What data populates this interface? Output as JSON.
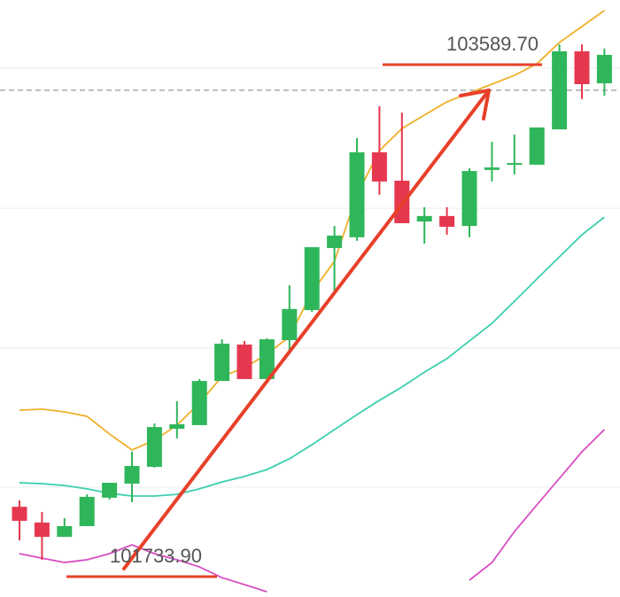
{
  "chart_data": {
    "type": "candlestick",
    "ylim": [
      101660,
      103824
    ],
    "grid": true,
    "grid_values": [
      103577,
      103069,
      102562,
      102058
    ],
    "up_color": "#2fb65a",
    "down_color": "#e5384f",
    "open": [
      101987,
      101930,
      101878,
      101917,
      102020,
      102071,
      102132,
      102270,
      102283,
      102443,
      102575,
      102450,
      102591,
      102700,
      102925,
      102964,
      103272,
      103169,
      103021,
      103041,
      103005,
      103208,
      103227,
      103227,
      103355,
      103638,
      103522
    ],
    "high": [
      102010,
      101968,
      101946,
      102032,
      102074,
      102187,
      102289,
      102370,
      102450,
      102594,
      102588,
      102598,
      102790,
      102928,
      103005,
      103323,
      103439,
      103416,
      103073,
      103073,
      103214,
      103310,
      103336,
      103362,
      103663,
      103663,
      103648
    ],
    "low": [
      101865,
      101795,
      101878,
      101917,
      102013,
      102004,
      102129,
      102235,
      102283,
      102443,
      102450,
      102443,
      102540,
      102694,
      102765,
      102951,
      103118,
      103015,
      102941,
      102973,
      102964,
      103166,
      103192,
      103227,
      103355,
      103465,
      103477
    ],
    "close": [
      101936,
      101878,
      101917,
      102023,
      102074,
      102135,
      102276,
      102286,
      102443,
      102578,
      102450,
      102594,
      102704,
      102928,
      102970,
      103272,
      103166,
      103015,
      103041,
      103002,
      103204,
      103217,
      103233,
      103362,
      103638,
      103519,
      103625
    ],
    "lines": [
      {
        "color": "#eeb02a",
        "values": [
          102337,
          102341,
          102331,
          102315,
          102251,
          102193,
          102228,
          102283,
          102363,
          102459,
          102491,
          102540,
          102604,
          102765,
          102877,
          103118,
          103278,
          103358,
          103407,
          103455,
          103487,
          103519,
          103551,
          103593,
          103670,
          103728,
          103786
        ]
      },
      {
        "color": "#3ccfae",
        "values": [
          102074,
          102071,
          102064,
          102052,
          102036,
          102026,
          102026,
          102032,
          102052,
          102077,
          102097,
          102122,
          102161,
          102212,
          102267,
          102321,
          102373,
          102421,
          102475,
          102524,
          102588,
          102652,
          102732,
          102813,
          102893,
          102973,
          103037
        ]
      },
      {
        "color": "#d94fc2",
        "values": [
          101817,
          101801,
          101785,
          101795,
          101817,
          101849,
          101817,
          101795,
          101769,
          101730,
          101705,
          101679,
          null,
          null,
          null,
          null,
          null,
          null,
          null,
          null,
          101721,
          101785,
          101897,
          101994,
          102090,
          102186,
          102267
        ]
      }
    ],
    "current_price": 103497,
    "annotations": [
      {
        "value": 103589.7,
        "label": "103589.70",
        "color": "#e8402a"
      },
      {
        "value": 101733.9,
        "label": "101733.90",
        "color": "#e8402a"
      }
    ]
  }
}
